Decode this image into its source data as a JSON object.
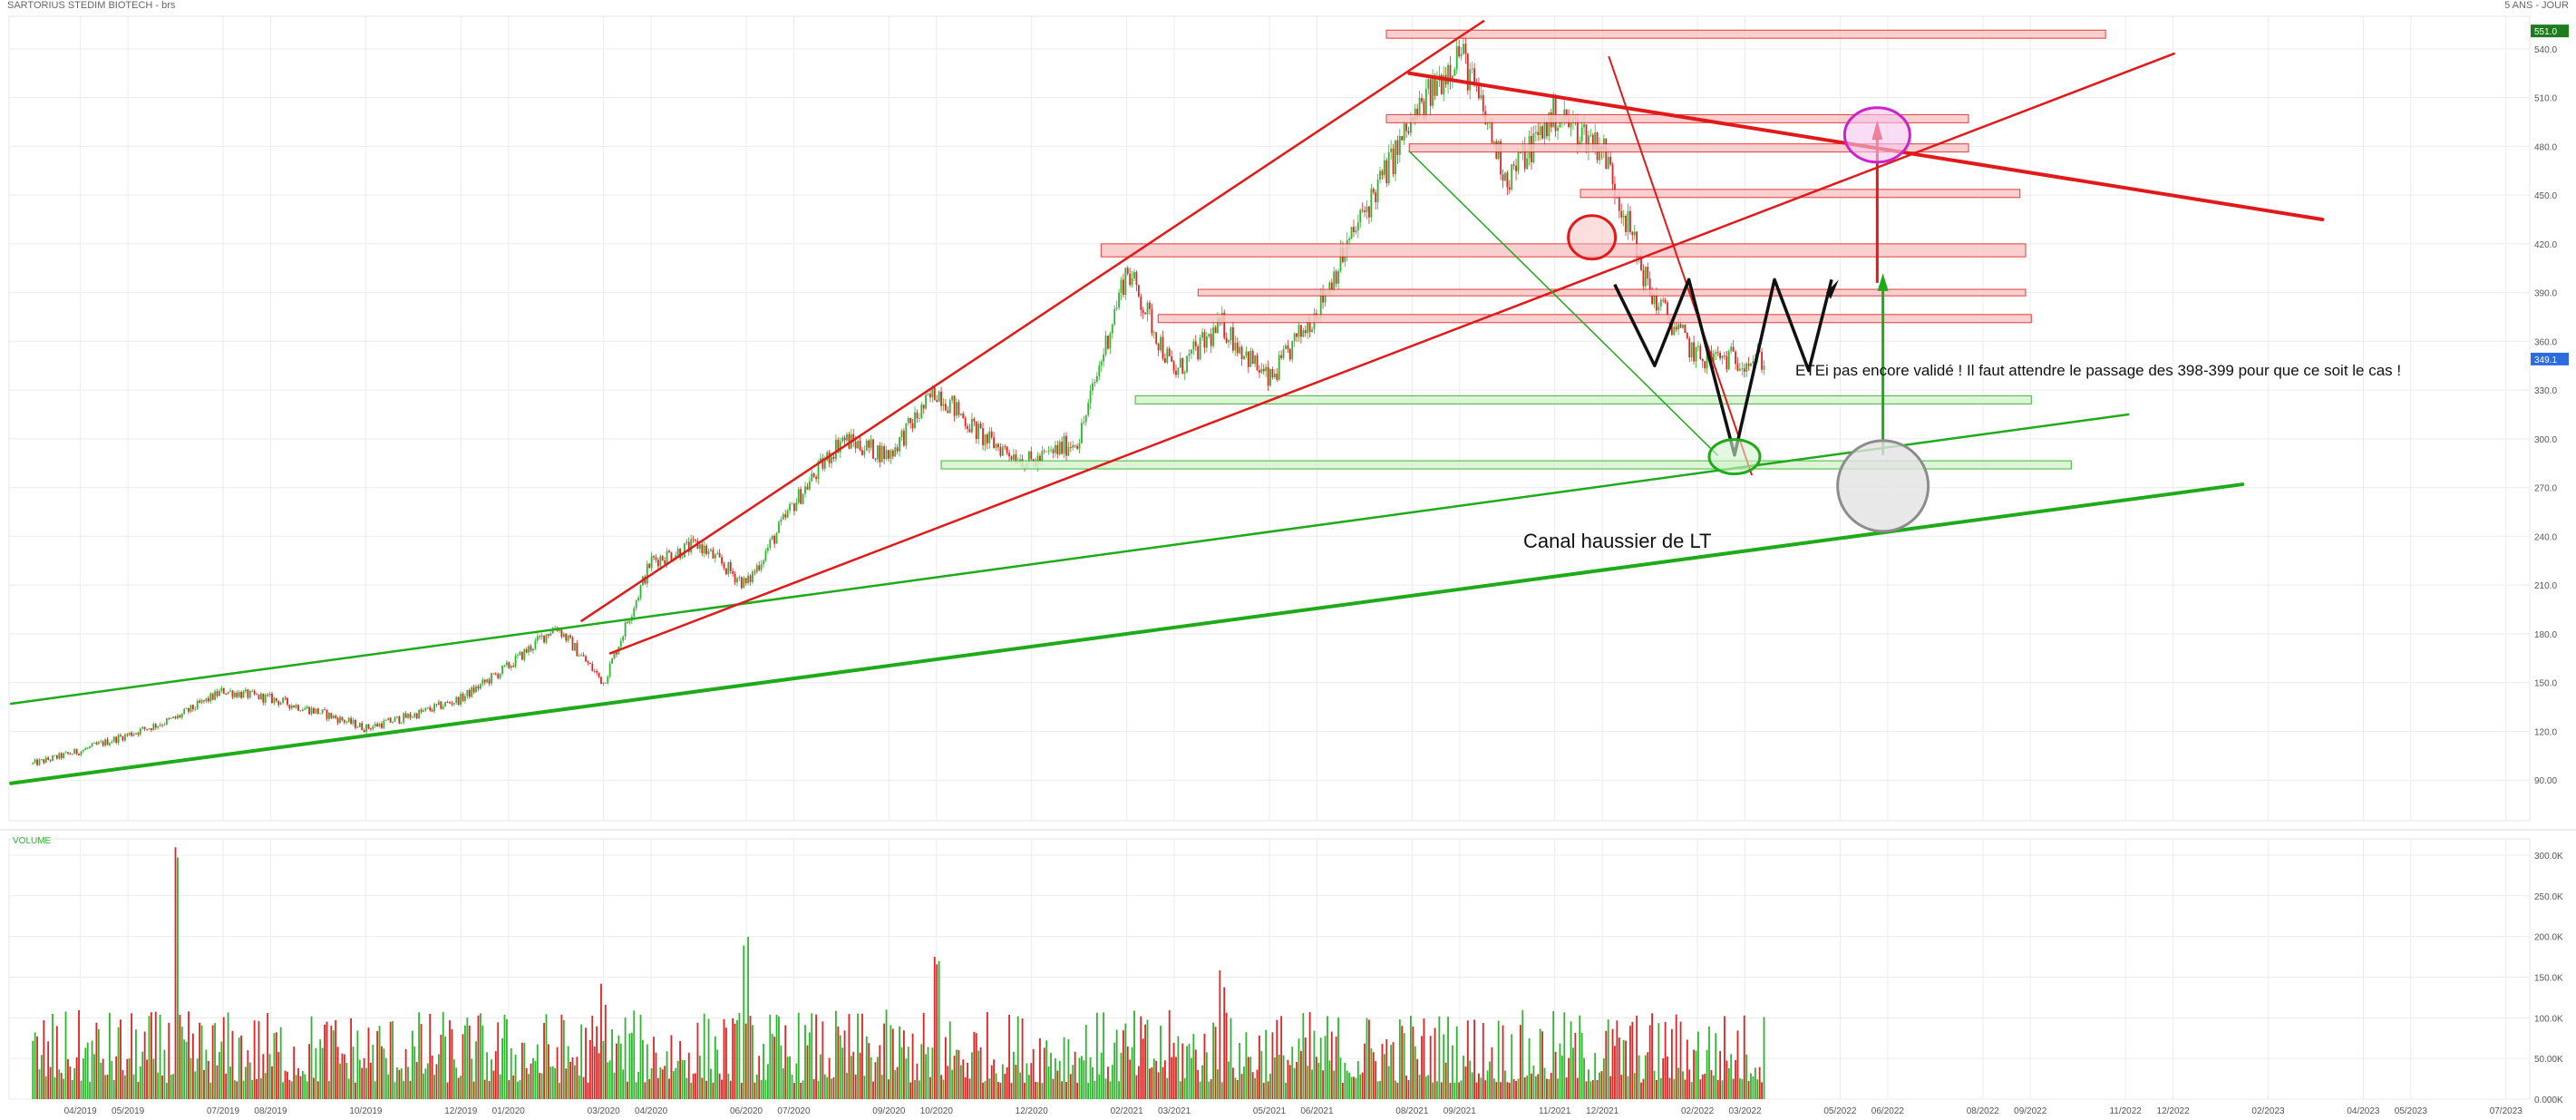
{
  "header": {
    "symbol_title": "SARTORIUS STEDIM BIOTECH - brs",
    "period_label": "5 ANS - JOUR"
  },
  "colors": {
    "bull": "#2fb62f",
    "bear": "#e02424",
    "trend_red": "#e01a1a",
    "trend_green": "#1faa1a",
    "zone_red_fill": "#f8c8c8",
    "zone_green_fill": "#d8f3d0",
    "price_tag_bg": "#1e7b1e",
    "current_tag_bg": "#2d6cdf",
    "grid": "#ececec"
  },
  "chart_data": [
    {
      "type": "line",
      "name": "price",
      "x_axis": {
        "tick_labels": [
          "04/2019",
          "05/2019",
          "07/2019",
          "08/2019",
          "10/2019",
          "12/2019",
          "01/2020",
          "03/2020",
          "04/2020",
          "06/2020",
          "07/2020",
          "09/2020",
          "10/2020",
          "12/2020",
          "02/2021",
          "03/2021",
          "05/2021",
          "06/2021",
          "08/2021",
          "09/2021",
          "11/2021",
          "12/2021",
          "02/2022",
          "03/2022",
          "05/2022",
          "06/2022",
          "08/2022",
          "09/2022",
          "11/2022",
          "12/2022",
          "02/2023",
          "04/2023",
          "05/2023",
          "07/2023"
        ],
        "range": [
          "2019-03",
          "2023-08"
        ]
      },
      "y_axis": {
        "tick_labels": [
          "540.0",
          "510.0",
          "480.0",
          "450.0",
          "420.0",
          "390.0",
          "360.0",
          "330.0",
          "300.0",
          "270.0",
          "240.0",
          "210.0",
          "180.0",
          "150.0",
          "120.0",
          "90.00"
        ],
        "range": [
          65,
          560
        ],
        "grid": true
      },
      "price_tags": {
        "high": "551.0",
        "current": "349.1"
      },
      "series": [
        {
          "x": [
            "2019-03",
            "2019-04",
            "2019-05",
            "2019-06",
            "2019-07",
            "2019-08",
            "2019-09",
            "2019-10",
            "2019-11",
            "2019-12",
            "2020-01",
            "2020-02",
            "2020-03",
            "2020-04",
            "2020-05",
            "2020-06",
            "2020-07",
            "2020-08",
            "2020-09",
            "2020-10",
            "2020-11",
            "2020-12",
            "2021-01",
            "2021-02",
            "2021-03",
            "2021-04",
            "2021-05",
            "2021-06",
            "2021-07",
            "2021-08",
            "2021-09",
            "2021-10",
            "2021-11",
            "2021-12",
            "2022-01",
            "2022-02",
            "2022-03"
          ],
          "values": [
            100,
            108,
            118,
            128,
            145,
            140,
            132,
            122,
            130,
            140,
            160,
            185,
            150,
            225,
            235,
            210,
            260,
            300,
            290,
            330,
            300,
            285,
            300,
            405,
            340,
            370,
            335,
            380,
            440,
            495,
            540,
            460,
            500,
            480,
            390,
            350,
            349
          ]
        }
      ],
      "annotations": {
        "channel_label": "Canal haussier de LT",
        "note": "ETEi pas encore validé ! Il faut attendre le passage des 398-399 pour que ce soit le cas !"
      }
    },
    {
      "type": "bar",
      "name": "volume",
      "title": "VOLUME",
      "y_axis": {
        "tick_labels": [
          "300.0K",
          "250.0K",
          "200.0K",
          "150.0K",
          "100.0K",
          "50.00K",
          "0.000K"
        ],
        "range": [
          0,
          320
        ]
      },
      "notable_values": [
        {
          "x": "2019-06",
          "value": 310
        },
        {
          "x": "2020-03",
          "value": 150
        },
        {
          "x": "2020-06",
          "value": 210
        },
        {
          "x": "2020-10",
          "value": 190
        },
        {
          "x": "2021-04",
          "value": 180
        }
      ],
      "typical_range": [
        20,
        110
      ]
    }
  ]
}
